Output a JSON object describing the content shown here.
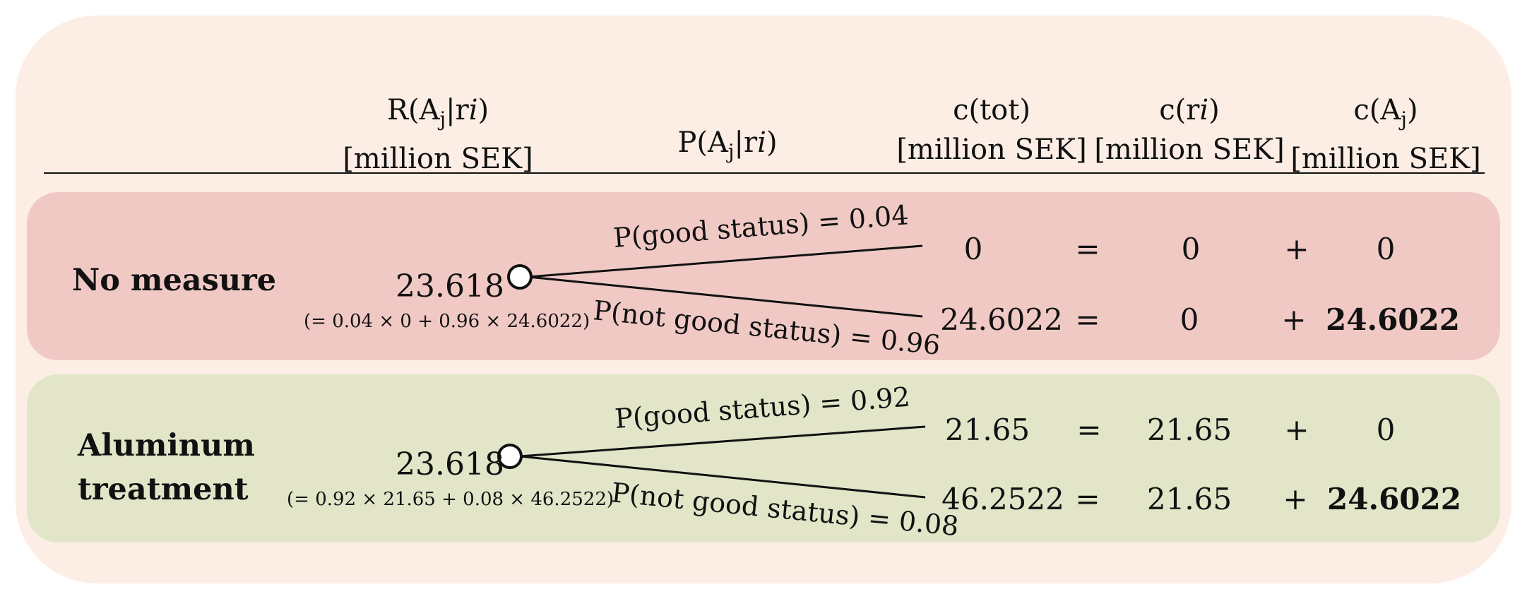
{
  "headers": {
    "expected_cost_top": "R(Aj|ri)",
    "expected_cost_unit": "[million SEK]",
    "probability": "P(Aj|ri)",
    "total_cost_top": "c(tot)",
    "total_cost_unit": "[million SEK]",
    "measure_cost_top": "c(ri)",
    "measure_cost_unit": "[million SEK]",
    "damage_cost_top": "c(Aj)",
    "damage_cost_unit": "[million SEK]"
  },
  "rows": [
    {
      "label_line1": "No measure",
      "label_line2": "",
      "expected_value": "23.618",
      "expected_formula": "(= 0.04 × 0 + 0.96  × 24.6022)",
      "branches": [
        {
          "probability_label": "P(good status) = 0.04",
          "c_tot": "0",
          "equals": "=",
          "c_r": "0",
          "plus": "+",
          "c_a": "0",
          "c_a_bold": false
        },
        {
          "probability_label": "P(not good status) = 0.96",
          "c_tot": "24.6022",
          "equals": "=",
          "c_r": "0",
          "plus": "+",
          "c_a": "24.6022",
          "c_a_bold": true
        }
      ]
    },
    {
      "label_line1": "Aluminum",
      "label_line2": "treatment",
      "expected_value": "23.618",
      "expected_formula": "(= 0.92 × 21.65 + 0.08  × 46.2522)",
      "branches": [
        {
          "probability_label": "P(good status) = 0.92",
          "c_tot": "21.65",
          "equals": "=",
          "c_r": "21.65",
          "plus": "+",
          "c_a": "0",
          "c_a_bold": false
        },
        {
          "probability_label": "P(not good status) = 0.08",
          "c_tot": "46.2522",
          "equals": "=",
          "c_r": "21.65",
          "plus": "+",
          "c_a": "24.6022",
          "c_a_bold": true
        }
      ]
    }
  ],
  "colors": {
    "outer_background": "#fdeee5",
    "no_measure_band": "#f0c9c5",
    "aluminum_band": "#e2e5c8",
    "line": "#111111"
  }
}
